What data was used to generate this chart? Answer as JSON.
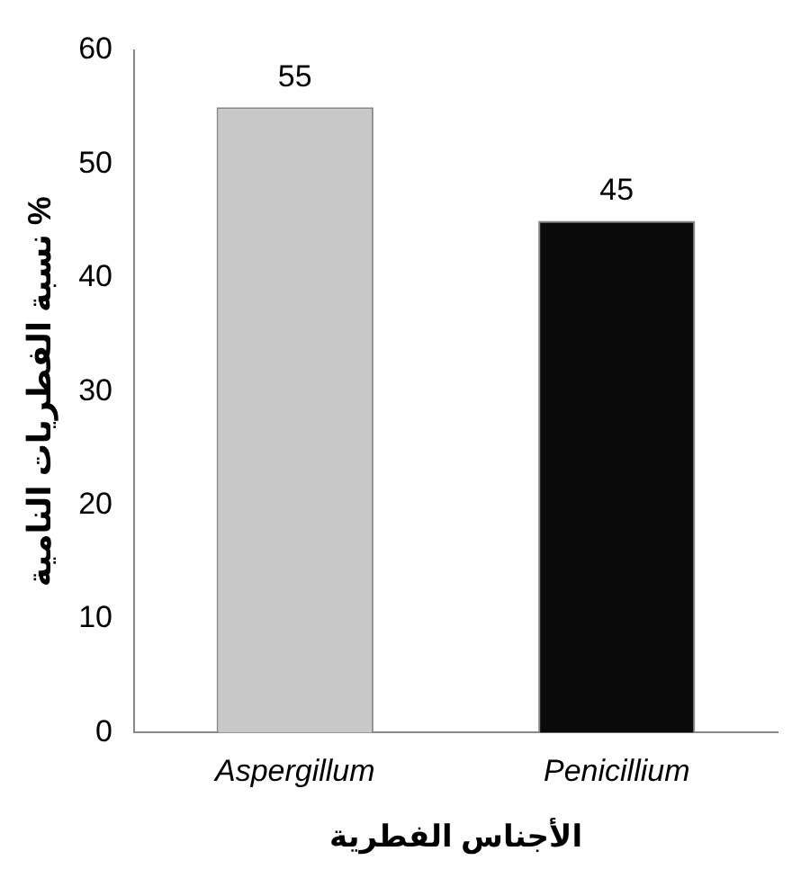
{
  "chart_data": {
    "type": "bar",
    "xlabel": "الأجناس الفطرية",
    "ylabel": "نسبة الفطريات النامية %",
    "categories": [
      "Aspergillum",
      "Penicillium"
    ],
    "values": [
      55,
      45
    ],
    "colors": [
      "#c8c8c8",
      "#0a0a0a"
    ],
    "ylim": [
      0,
      60
    ],
    "yticks": [
      0,
      10,
      20,
      30,
      40,
      50,
      60
    ],
    "grid": false,
    "legend": false,
    "data_labels": true
  }
}
